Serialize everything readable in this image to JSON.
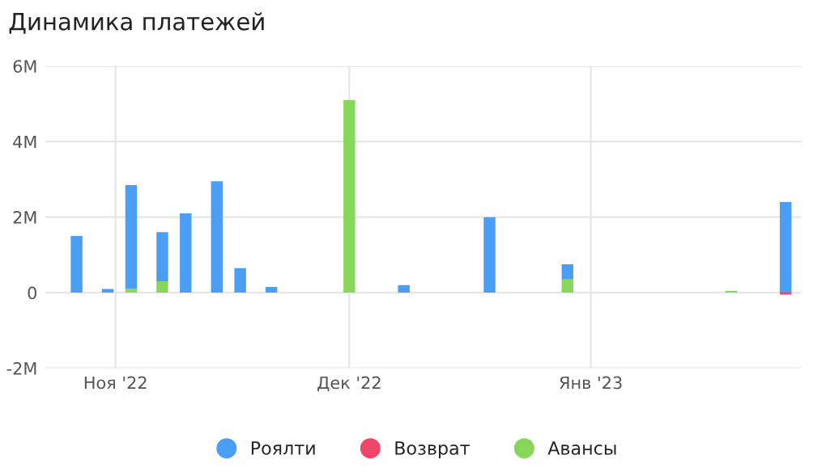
{
  "chart_data": {
    "type": "bar",
    "title": "Динамика платежей",
    "stacked": true,
    "x": [
      "2022-10-27",
      "2022-10-31",
      "2022-11-03",
      "2022-11-07",
      "2022-11-10",
      "2022-11-14",
      "2022-11-17",
      "2022-11-21",
      "2022-12-01",
      "2022-12-08",
      "2022-12-19",
      "2022-12-29",
      "2023-01-19",
      "2023-01-26"
    ],
    "series": [
      {
        "name": "Авансы",
        "color": "#88d65a",
        "values": [
          null,
          null,
          100000,
          300000,
          null,
          null,
          null,
          null,
          5100000,
          null,
          null,
          350000,
          50000,
          null
        ]
      },
      {
        "name": "Возврат",
        "color": "#f0466a",
        "values": [
          null,
          null,
          null,
          null,
          null,
          null,
          null,
          null,
          null,
          null,
          null,
          null,
          null,
          -50000
        ]
      },
      {
        "name": "Роялти",
        "color": "#4a9ff5",
        "values": [
          1500000,
          100000,
          2750000,
          1300000,
          2100000,
          2950000,
          650000,
          150000,
          null,
          200000,
          2000000,
          400000,
          null,
          2400000
        ]
      }
    ],
    "xlim": [
      "2022-10-23",
      "2023-01-28"
    ],
    "xticks": [
      {
        "value": "2022-11-01",
        "label": "Ноя '22"
      },
      {
        "value": "2022-12-01",
        "label": "Дек '22"
      },
      {
        "value": "2023-01-01",
        "label": "Янв '23"
      }
    ],
    "ylim": [
      -2000000,
      6000000
    ],
    "yticks": [
      {
        "value": -2000000,
        "label": "-2M"
      },
      {
        "value": 0,
        "label": "0"
      },
      {
        "value": 2000000,
        "label": "2M"
      },
      {
        "value": 4000000,
        "label": "4M"
      },
      {
        "value": 6000000,
        "label": "6M"
      }
    ],
    "grid": true,
    "legend": "bottom"
  }
}
